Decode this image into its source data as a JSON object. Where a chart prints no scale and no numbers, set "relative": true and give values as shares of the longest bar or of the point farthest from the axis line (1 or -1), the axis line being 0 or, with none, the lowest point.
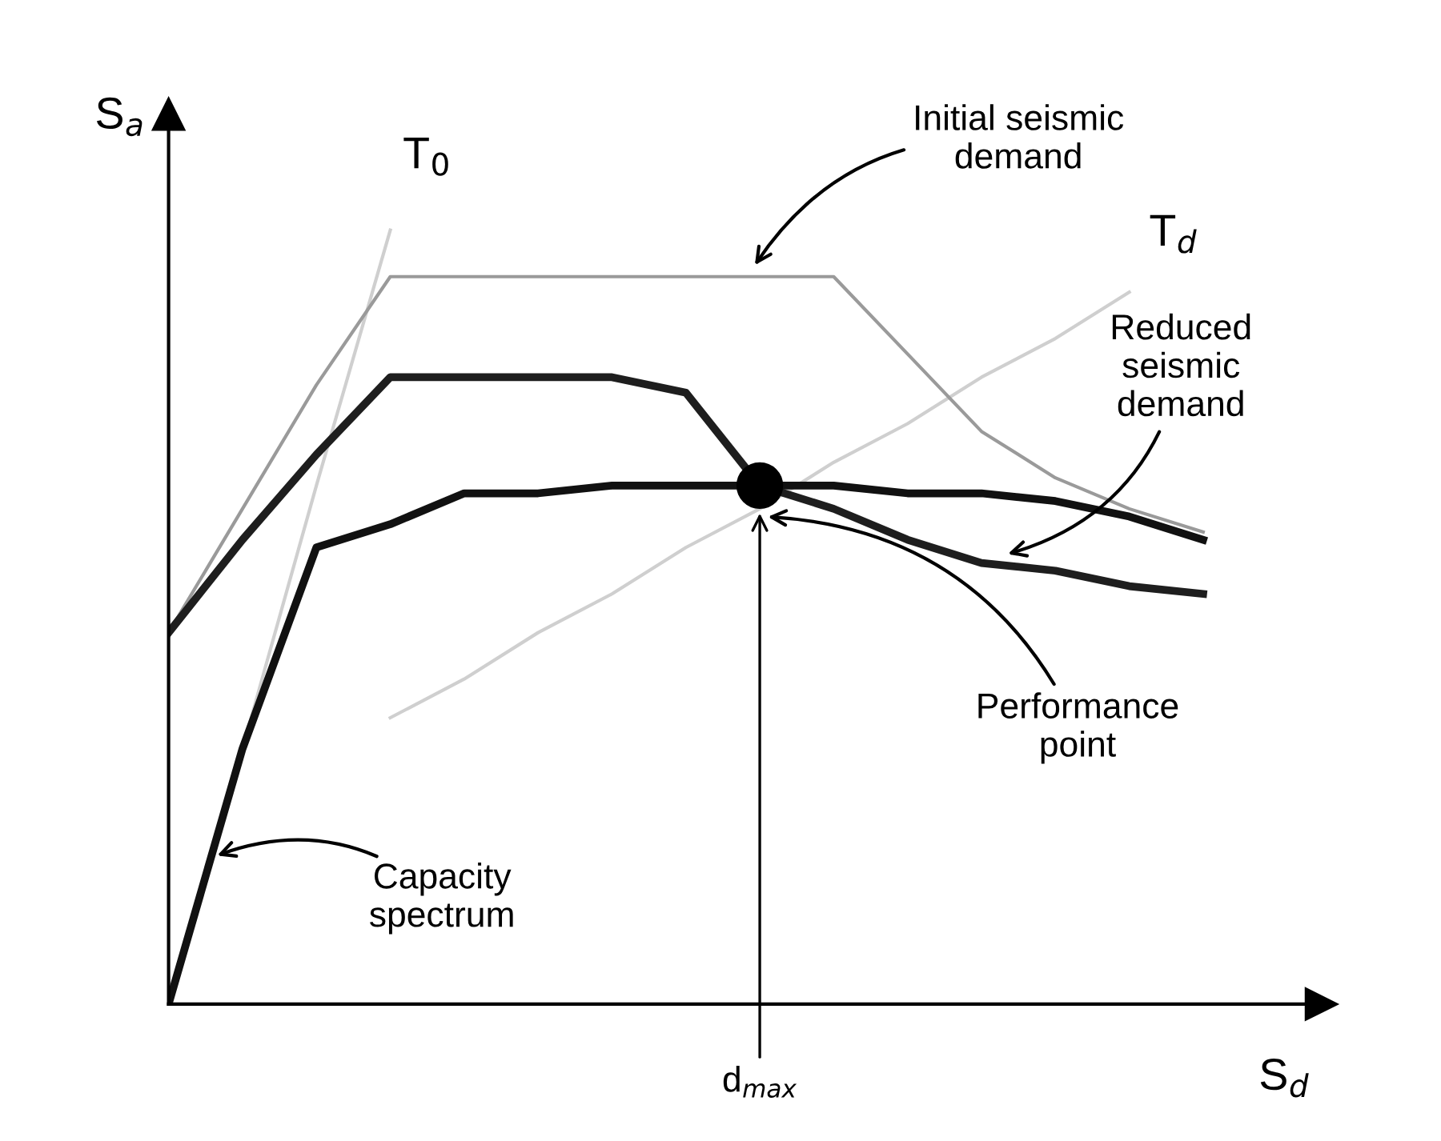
{
  "chart_data": {
    "type": "line",
    "relative": true,
    "xlabel": "S$_{d}$",
    "ylabel": "S$_{a}$",
    "categories": [
      null,
      null,
      null,
      null,
      null,
      null,
      null,
      null,
      null,
      null,
      null,
      null,
      null,
      null,
      null
    ],
    "series": [
      {
        "color": "#cfcfcf",
        "values": [
          null,
          0.33,
          0.67,
          1.0,
          null,
          null,
          null,
          null,
          null,
          null,
          null,
          null,
          null,
          null,
          null
        ]
      },
      {
        "color": "#cfcfcf",
        "values": [
          null,
          null,
          null,
          0.37,
          0.42,
          0.48,
          0.53,
          0.59,
          0.64,
          0.7,
          0.75,
          0.81,
          0.86,
          0.92,
          null
        ]
      },
      {
        "color": "#9a9a9a",
        "values": [
          0.48,
          0.64,
          0.8,
          0.94,
          0.94,
          0.94,
          0.94,
          0.94,
          0.94,
          0.94,
          0.84,
          0.74,
          0.68,
          0.64,
          0.61
        ]
      },
      {
        "color": "#1e1e1e",
        "values": [
          0.48,
          0.6,
          0.71,
          0.81,
          0.81,
          0.81,
          0.81,
          0.79,
          0.67,
          0.64,
          0.6,
          0.57,
          0.56,
          0.54,
          0.53
        ]
      },
      {
        "color": "#111111",
        "values": [
          0.0,
          0.33,
          0.59,
          0.62,
          0.66,
          0.66,
          0.67,
          0.67,
          0.67,
          0.67,
          0.66,
          0.66,
          0.65,
          0.63,
          0.6
        ]
      }
    ],
    "annotations": [
      "T$_{0}$",
      "T$_{d}$",
      "Initial seismic\ndemand",
      "Reduced\nseismic\ndemand",
      "Performance\npoint",
      "Capacity\nspectrum",
      "d$_{max}$"
    ]
  }
}
